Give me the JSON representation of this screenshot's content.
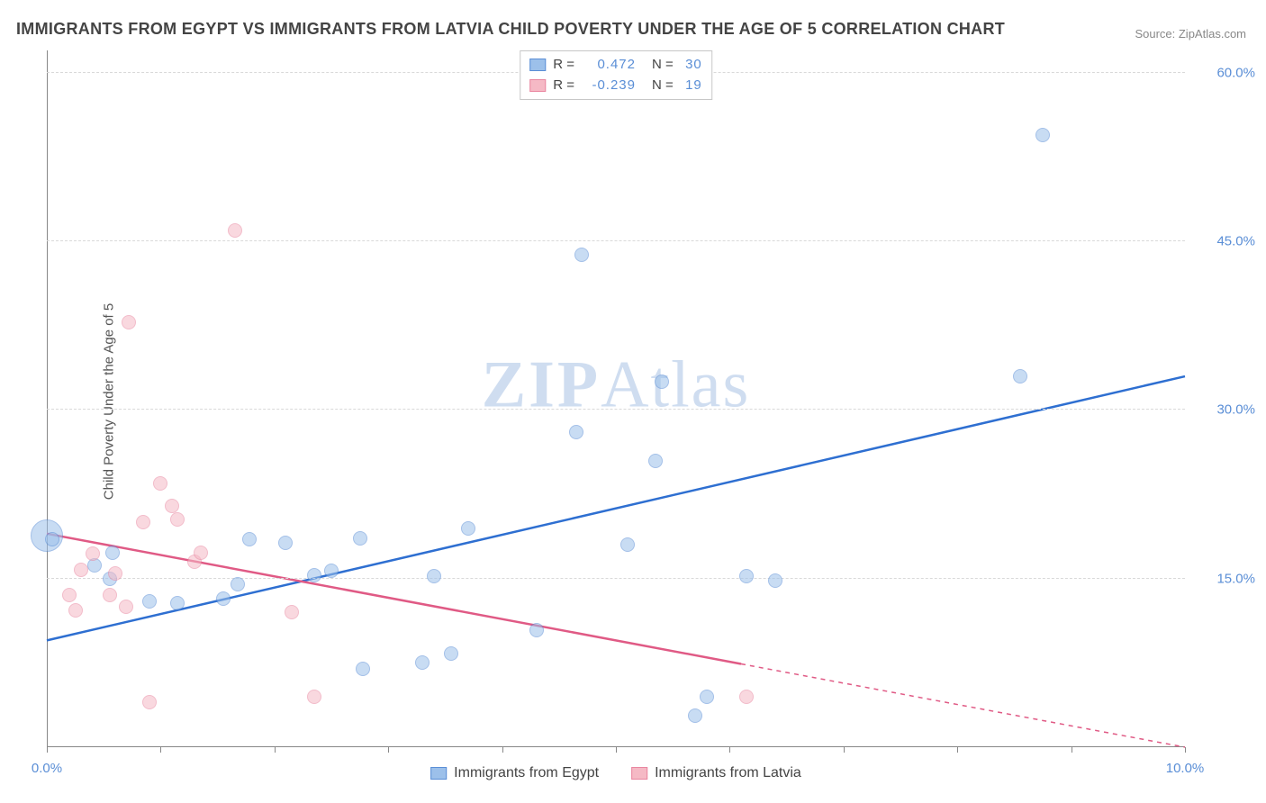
{
  "title": "IMMIGRANTS FROM EGYPT VS IMMIGRANTS FROM LATVIA CHILD POVERTY UNDER THE AGE OF 5 CORRELATION CHART",
  "source_label": "Source: ZipAtlas.com",
  "ylabel": "Child Poverty Under the Age of 5",
  "watermark_bold": "ZIP",
  "watermark_light": "Atlas",
  "chart": {
    "type": "scatter",
    "xlim": [
      0,
      10
    ],
    "ylim": [
      0,
      62
    ],
    "x_ticks": [
      0,
      10
    ],
    "x_tick_labels": [
      "0.0%",
      "10.0%"
    ],
    "x_minor_tick_step": 1,
    "y_ticks": [
      15,
      30,
      45,
      60
    ],
    "y_tick_labels": [
      "15.0%",
      "30.0%",
      "45.0%",
      "60.0%"
    ],
    "grid_color": "#d9d9d9",
    "axis_color": "#888888",
    "background_color": "#ffffff",
    "point_radius": 8,
    "point_opacity": 0.55,
    "watermark_color": "#a8c2e4"
  },
  "series": [
    {
      "name": "Immigrants from Egypt",
      "fill": "#9cc0ea",
      "stroke": "#5a8ed6",
      "trend_color": "#2e6fd1",
      "r_value": "0.472",
      "n_value": "30",
      "trend": {
        "x1": 0,
        "y1": 9.5,
        "x2": 10,
        "y2": 33,
        "dash_from_x": 10
      },
      "points": [
        [
          0.05,
          18.5
        ],
        [
          0.42,
          16.2
        ],
        [
          0.55,
          15.0
        ],
        [
          0.58,
          17.3
        ],
        [
          0.9,
          13.0
        ],
        [
          1.15,
          12.8
        ],
        [
          1.55,
          13.2
        ],
        [
          1.68,
          14.5
        ],
        [
          1.78,
          18.5
        ],
        [
          2.1,
          18.2
        ],
        [
          2.35,
          15.3
        ],
        [
          2.5,
          15.7
        ],
        [
          2.75,
          18.6
        ],
        [
          2.78,
          7.0
        ],
        [
          3.3,
          7.5
        ],
        [
          3.4,
          15.2
        ],
        [
          3.55,
          8.3
        ],
        [
          3.7,
          19.5
        ],
        [
          4.3,
          10.4
        ],
        [
          4.65,
          28.0
        ],
        [
          4.7,
          43.8
        ],
        [
          5.1,
          18.0
        ],
        [
          5.35,
          25.5
        ],
        [
          5.4,
          32.5
        ],
        [
          5.7,
          2.8
        ],
        [
          5.8,
          4.5
        ],
        [
          6.15,
          15.2
        ],
        [
          6.4,
          14.8
        ],
        [
          8.55,
          33.0
        ],
        [
          8.75,
          54.5
        ]
      ],
      "big_points": [
        [
          0.0,
          18.8,
          18
        ]
      ]
    },
    {
      "name": "Immigrants from Latvia",
      "fill": "#f5b9c5",
      "stroke": "#e986a0",
      "trend_color": "#e05a85",
      "r_value": "-0.239",
      "n_value": "19",
      "trend": {
        "x1": 0,
        "y1": 19,
        "x2": 10,
        "y2": 0,
        "dash_from_x": 6.1
      },
      "points": [
        [
          0.2,
          13.5
        ],
        [
          0.25,
          12.2
        ],
        [
          0.3,
          15.8
        ],
        [
          0.4,
          17.2
        ],
        [
          0.55,
          13.5
        ],
        [
          0.6,
          15.5
        ],
        [
          0.7,
          12.5
        ],
        [
          0.72,
          37.8
        ],
        [
          0.85,
          20.0
        ],
        [
          0.9,
          4.0
        ],
        [
          1.0,
          23.5
        ],
        [
          1.1,
          21.5
        ],
        [
          1.15,
          20.3
        ],
        [
          1.3,
          16.5
        ],
        [
          1.35,
          17.3
        ],
        [
          1.65,
          46.0
        ],
        [
          2.15,
          12.0
        ],
        [
          2.35,
          4.5
        ],
        [
          6.15,
          4.5
        ]
      ],
      "big_points": []
    }
  ],
  "legend_labels": {
    "r_prefix": "R =",
    "n_prefix": "N =",
    "series1": "Immigrants from Egypt",
    "series2": "Immigrants from Latvia"
  }
}
